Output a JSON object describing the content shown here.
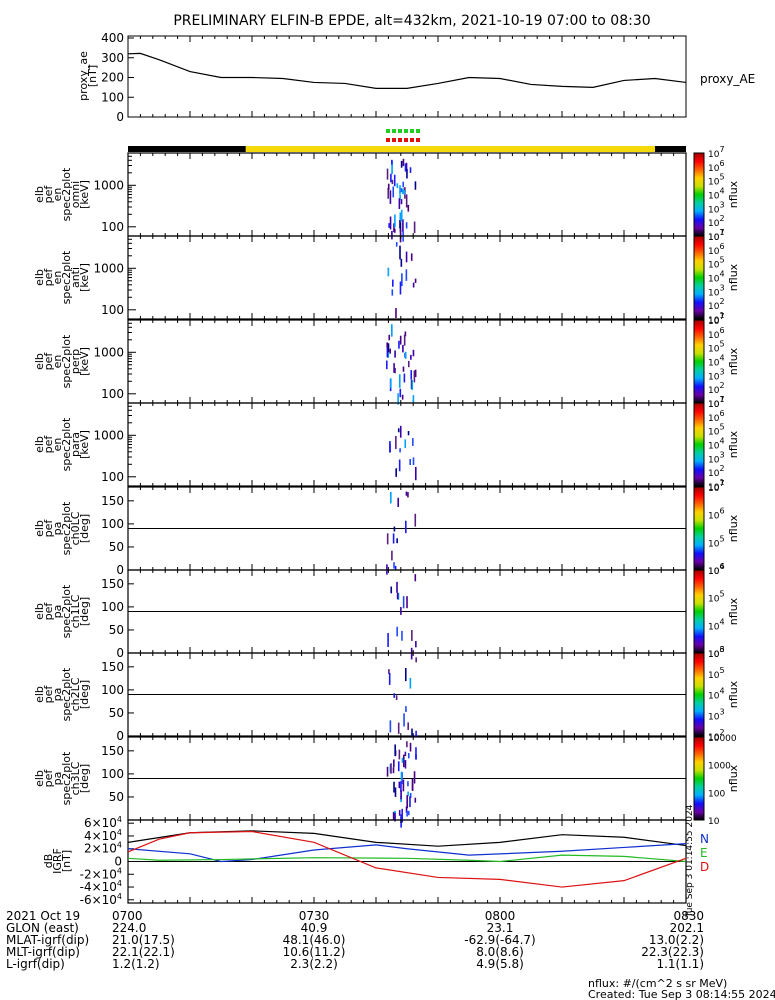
{
  "title": "PRELIMINARY ELFIN-B EPDE, alt=432km, 2021-10-19 07:00 to 08:30",
  "colors": {
    "axis": "#000000",
    "sunlit": "#f5d90a",
    "dark": "#000000",
    "marker_green": "#22cc22",
    "marker_red": "#dd1111",
    "bx": "#000000",
    "by": "#1030d0",
    "bz": "#22bb22",
    "bt": "#dd1111"
  },
  "chart_data": [
    {
      "type": "line",
      "name": "proxy_ae",
      "ylabel_lines": [
        "proxy_ae",
        "[nT]"
      ],
      "ylim": [
        0,
        400
      ],
      "yticks": [
        "0",
        "100",
        "200",
        "300",
        "400"
      ],
      "series": [
        {
          "name": "proxy_AE",
          "x_min": [
            0,
            2,
            5,
            10,
            15,
            20,
            25,
            30,
            35,
            40,
            45,
            50,
            55,
            60,
            65,
            70,
            75,
            80,
            85,
            90
          ],
          "values": [
            320,
            322,
            290,
            230,
            200,
            200,
            195,
            175,
            170,
            145,
            145,
            170,
            200,
            195,
            165,
            155,
            150,
            185,
            195,
            175
          ]
        }
      ]
    },
    {
      "type": "heatmap",
      "ylabel_lines": [
        "elb",
        "pef",
        "en",
        "spec2plot",
        "omni",
        "[keV]"
      ],
      "yscale": "log",
      "ylim": [
        60,
        6000
      ],
      "yticks": [
        "100",
        "1000"
      ],
      "colorbar_label": "nflux",
      "colorbar_ticks": [
        "10^1",
        "10^2",
        "10^3",
        "10^4",
        "10^5",
        "10^6",
        "10^7"
      ]
    },
    {
      "type": "heatmap",
      "ylabel_lines": [
        "elb",
        "pef",
        "en",
        "spec2plot",
        "anti",
        "[keV]"
      ],
      "yscale": "log",
      "ylim": [
        60,
        6000
      ],
      "yticks": [
        "100",
        "1000"
      ],
      "colorbar_label": "nflux",
      "colorbar_ticks": [
        "10^1",
        "10^2",
        "10^3",
        "10^4",
        "10^5",
        "10^6",
        "10^7"
      ]
    },
    {
      "type": "heatmap",
      "ylabel_lines": [
        "elb",
        "pef",
        "en",
        "spec2plot",
        "perp",
        "[keV]"
      ],
      "yscale": "log",
      "ylim": [
        60,
        6000
      ],
      "yticks": [
        "100",
        "1000"
      ],
      "colorbar_label": "nflux",
      "colorbar_ticks": [
        "10^1",
        "10^2",
        "10^3",
        "10^4",
        "10^5",
        "10^6",
        "10^7"
      ]
    },
    {
      "type": "heatmap",
      "ylabel_lines": [
        "elb",
        "pef",
        "en",
        "spec2plot",
        "para",
        "[keV]"
      ],
      "yscale": "log",
      "ylim": [
        60,
        6000
      ],
      "yticks": [
        "100",
        "1000"
      ],
      "colorbar_label": "nflux",
      "colorbar_ticks": [
        "10^1",
        "10^2",
        "10^3",
        "10^4",
        "10^5",
        "10^6",
        "10^7"
      ]
    },
    {
      "type": "heatmap",
      "ylabel_lines": [
        "elb",
        "pef",
        "pa",
        "spec2plot",
        "ch0LC",
        "[deg]"
      ],
      "ylim": [
        0,
        180
      ],
      "yticks": [
        "0",
        "50",
        "100",
        "150"
      ],
      "colorbar_label": "nflux",
      "colorbar_ticks": [
        "10^4",
        "10^5",
        "10^6",
        "10^7"
      ]
    },
    {
      "type": "heatmap",
      "ylabel_lines": [
        "elb",
        "pef",
        "pa",
        "spec2plot",
        "ch1LC",
        "[deg]"
      ],
      "ylim": [
        0,
        180
      ],
      "yticks": [
        "0",
        "50",
        "100",
        "150"
      ],
      "colorbar_label": "nflux",
      "colorbar_ticks": [
        "10^3",
        "10^4",
        "10^5",
        "10^6"
      ]
    },
    {
      "type": "heatmap",
      "ylabel_lines": [
        "elb",
        "pef",
        "pa",
        "spec2plot",
        "ch2LC",
        "[deg]"
      ],
      "ylim": [
        0,
        180
      ],
      "yticks": [
        "0",
        "50",
        "100",
        "150"
      ],
      "colorbar_label": "nflux",
      "colorbar_ticks": [
        "10^2",
        "10^3",
        "10^4",
        "10^5",
        "10^6"
      ]
    },
    {
      "type": "heatmap",
      "ylabel_lines": [
        "elb",
        "pef",
        "pa",
        "spec2plot",
        "ch3LC",
        "[deg]"
      ],
      "ylim": [
        0,
        180
      ],
      "yticks": [
        "50",
        "100",
        "150"
      ],
      "colorbar_label": "nflux",
      "colorbar_ticks": [
        "10",
        "100",
        "1000",
        "10000"
      ]
    },
    {
      "type": "line",
      "ylabel_lines": [
        "dB",
        "IGRF",
        "[nT]"
      ],
      "ylim": [
        -65000,
        65000
      ],
      "yticks": [
        "-6×10^4",
        "-4×10^4",
        "-2×10^4",
        "0",
        "2×10^4",
        "4×10^4",
        "6×10^4"
      ],
      "legend": [
        "N",
        "E",
        "D"
      ],
      "side_text": "Tue Sep  3 01:14:55 2024",
      "series": [
        {
          "key": "bx",
          "x_min": [
            0,
            10,
            20,
            30,
            40,
            50,
            60,
            70,
            80,
            90
          ],
          "values": [
            30000,
            45000,
            48000,
            44000,
            30000,
            24000,
            30000,
            42000,
            38000,
            25000
          ]
        },
        {
          "key": "by",
          "x_min": [
            0,
            10,
            15,
            20,
            30,
            40,
            45,
            55,
            60,
            70,
            80,
            90
          ],
          "values": [
            20000,
            12000,
            0,
            3000,
            18000,
            26000,
            20000,
            10000,
            12000,
            16000,
            22000,
            28000
          ]
        },
        {
          "key": "bz",
          "x_min": [
            0,
            5,
            15,
            30,
            45,
            55,
            60,
            70,
            80,
            90
          ],
          "values": [
            5000,
            2000,
            3000,
            6000,
            5000,
            2000,
            0,
            10000,
            8000,
            0
          ]
        },
        {
          "key": "bt",
          "x_min": [
            0,
            5,
            10,
            20,
            30,
            40,
            50,
            60,
            70,
            80,
            90
          ],
          "values": [
            15000,
            35000,
            45000,
            47000,
            30000,
            -10000,
            -25000,
            -28000,
            -40000,
            -30000,
            5000
          ]
        }
      ]
    }
  ],
  "xaxis": {
    "tick_labels": [
      "0700",
      "0730",
      "0800",
      "0830"
    ],
    "tick_minutes": [
      0,
      30,
      60,
      90
    ],
    "xlim_min": [
      0,
      90
    ]
  },
  "ephemeris": {
    "rows": [
      {
        "label": "2021 Oct 19",
        "values": [
          "0700",
          "0730",
          "0800",
          "0830"
        ]
      },
      {
        "label": "GLON (east)",
        "values": [
          "224.0",
          "40.9",
          "23.1",
          "202.1"
        ]
      },
      {
        "label": "MLAT-igrf(dip)",
        "values": [
          "21.0(17.5)",
          "48.1(46.0)",
          "-62.9(-64.7)",
          "13.0(2.2)"
        ]
      },
      {
        "label": "MLT-igrf(dip)",
        "values": [
          "22.1(22.1)",
          "10.6(11.2)",
          "8.0(8.6)",
          "22.3(22.3)"
        ]
      },
      {
        "label": "L-igrf(dip)",
        "values": [
          "1.2(1.2)",
          "2.3(2.2)",
          "4.9(5.8)",
          "1.1(1.1)"
        ]
      }
    ]
  },
  "footer": {
    "line1": "nflux: #/(cm^2 s sr MeV)",
    "line2": "Created: Tue Sep  3 08:14:55 2024"
  }
}
